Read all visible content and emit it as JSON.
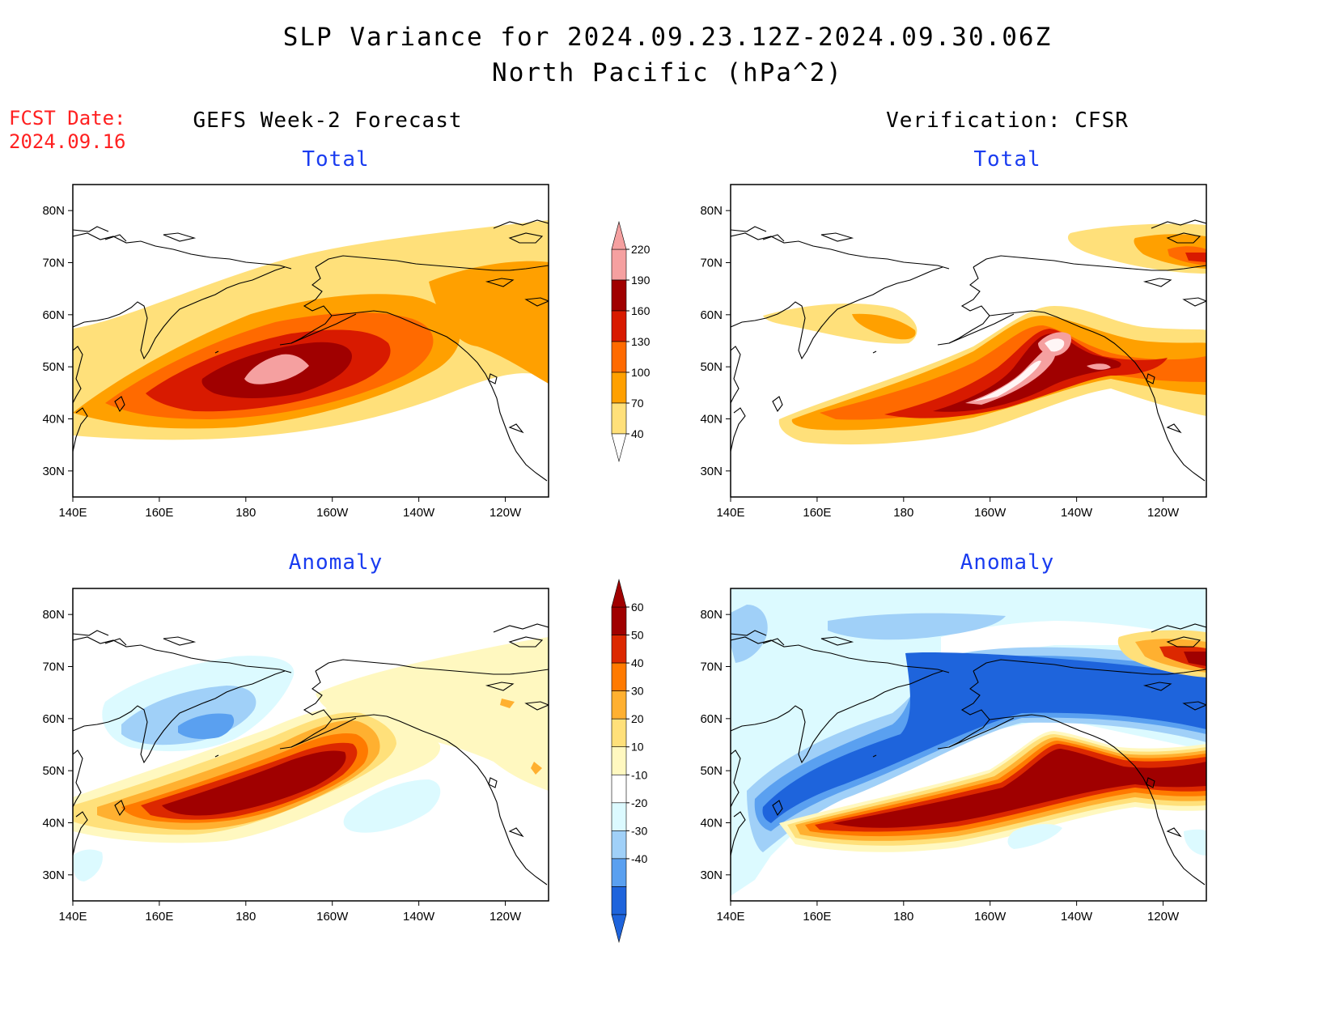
{
  "title": {
    "line1": "SLP Variance for 2024.09.23.12Z-2024.09.30.06Z",
    "line2": "North Pacific (hPa^2)"
  },
  "fcst_date": {
    "label": "FCST Date:",
    "value": "2024.09.16"
  },
  "columns": {
    "left": "GEFS Week-2 Forecast",
    "right": "Verification: CFSR"
  },
  "panels": {
    "total_label": "Total",
    "anomaly_label": "Anomaly"
  },
  "axes": {
    "lat_ticks": [
      "80N",
      "70N",
      "60N",
      "50N",
      "40N",
      "30N"
    ],
    "lon_ticks": [
      "140E",
      "160E",
      "180",
      "160W",
      "140W",
      "120W"
    ],
    "lat_range": [
      25,
      85
    ],
    "lon_range": [
      140,
      250
    ]
  },
  "colorbars": {
    "total": {
      "levels": [
        "220",
        "190",
        "160",
        "130",
        "100",
        "70",
        "40"
      ],
      "colors": [
        "#f5a0a0",
        "#a00000",
        "#d81a00",
        "#ff6a00",
        "#ffa000",
        "#ffe07a"
      ]
    },
    "anomaly": {
      "levels": [
        "60",
        "50",
        "40",
        "30",
        "20",
        "10",
        "-10",
        "-20",
        "-30",
        "-40"
      ],
      "colors": [
        "#a00000",
        "#dc2800",
        "#ff7a00",
        "#ffb030",
        "#ffe07a",
        "#fff8c0",
        "#ffffff",
        "#dcfaff",
        "#a0d0f8",
        "#5aa0f0",
        "#1e64dc"
      ]
    }
  },
  "colors": {
    "title": "#000000",
    "fcst_date": "#ff2020",
    "panel_subtitle": "#1a3cf0"
  }
}
